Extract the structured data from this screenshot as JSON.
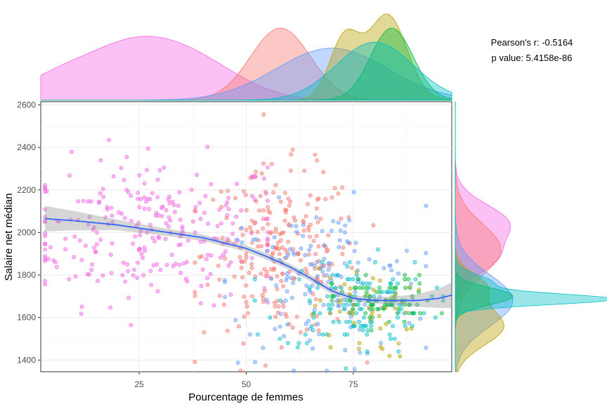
{
  "chart_data": {
    "type": "scatter",
    "title": "",
    "xlabel": "Pourcentage de femmes",
    "ylabel": "Salaire net médian",
    "xlim": [
      2,
      98
    ],
    "ylim": [
      1345,
      2615
    ],
    "x_ticks": [
      25,
      50,
      75
    ],
    "y_ticks": [
      1400,
      1600,
      1800,
      2000,
      2200,
      2400,
      2600
    ],
    "grid": true,
    "legend": "none",
    "annotation": {
      "line1": "Pearson's r: -0.5164",
      "line2": "p value: 5.4158e-86"
    },
    "groups": [
      {
        "color": "#F564E3",
        "x_center": 28,
        "x_spread": 16,
        "y_center": 2010,
        "y_spread": 170,
        "x_range": [
          3,
          55
        ]
      },
      {
        "color": "#F8766D",
        "x_center": 58,
        "x_spread": 9,
        "y_center": 1900,
        "y_spread": 200,
        "x_range": [
          38,
          82
        ]
      },
      {
        "color": "#619CFF",
        "x_center": 68,
        "x_spread": 12,
        "y_center": 1760,
        "y_spread": 180,
        "x_range": [
          45,
          92
        ]
      },
      {
        "color": "#00BFC4",
        "x_center": 75,
        "x_spread": 9,
        "y_center": 1660,
        "y_spread": 110,
        "x_range": [
          52,
          96
        ]
      },
      {
        "color": "#B79F00",
        "x_center": 77,
        "x_spread": 6,
        "y_center": 1620,
        "y_spread": 110,
        "x_range": [
          62,
          92
        ]
      },
      {
        "color": "#00BA38",
        "x_center": 82,
        "x_spread": 6,
        "y_center": 1680,
        "y_spread": 60,
        "x_range": [
          70,
          96
        ]
      }
    ],
    "trend": {
      "x": [
        3,
        10,
        20,
        30,
        40,
        50,
        55,
        60,
        65,
        70,
        75,
        80,
        85,
        90,
        95,
        98
      ],
      "y": [
        2065,
        2055,
        2035,
        2005,
        1975,
        1925,
        1885,
        1840,
        1785,
        1725,
        1690,
        1680,
        1680,
        1680,
        1690,
        1705
      ],
      "band_half_width": [
        60,
        45,
        25,
        18,
        15,
        15,
        15,
        15,
        15,
        15,
        15,
        15,
        20,
        30,
        45,
        60
      ]
    },
    "top_density": [
      {
        "color": "#F564E3",
        "peaks": [
          [
            35,
            12,
            0.45
          ],
          [
            20,
            10,
            0.35
          ],
          [
            5,
            8,
            0.18
          ]
        ]
      },
      {
        "color": "#F8766D",
        "peaks": [
          [
            58,
            7,
            0.72
          ]
        ]
      },
      {
        "color": "#619CFF",
        "peaks": [
          [
            70,
            13,
            0.52
          ]
        ]
      },
      {
        "color": "#B79F00",
        "peaks": [
          [
            73,
            3.5,
            0.62
          ],
          [
            83,
            4.5,
            0.85
          ]
        ]
      },
      {
        "color": "#00BA38",
        "peaks": [
          [
            84,
            5,
            0.72
          ]
        ]
      },
      {
        "color": "#00BFC4",
        "peaks": [
          [
            80,
            9,
            0.58
          ]
        ]
      }
    ],
    "right_density": [
      {
        "color": "#F564E3",
        "peaks": [
          [
            2040,
            90,
            0.35
          ],
          [
            1870,
            70,
            0.22
          ]
        ]
      },
      {
        "color": "#F8766D",
        "peaks": [
          [
            1920,
            120,
            0.3
          ]
        ]
      },
      {
        "color": "#619CFF",
        "peaks": [
          [
            1680,
            120,
            0.38
          ]
        ]
      },
      {
        "color": "#B79F00",
        "peaks": [
          [
            1560,
            90,
            0.32
          ],
          [
            1750,
            60,
            0.18
          ]
        ]
      },
      {
        "color": "#00BA38",
        "peaks": [
          [
            1700,
            40,
            0.38
          ]
        ]
      },
      {
        "color": "#00BFC4",
        "peaks": [
          [
            1685,
            25,
            1.0
          ],
          [
            1760,
            40,
            0.25
          ]
        ]
      }
    ]
  }
}
